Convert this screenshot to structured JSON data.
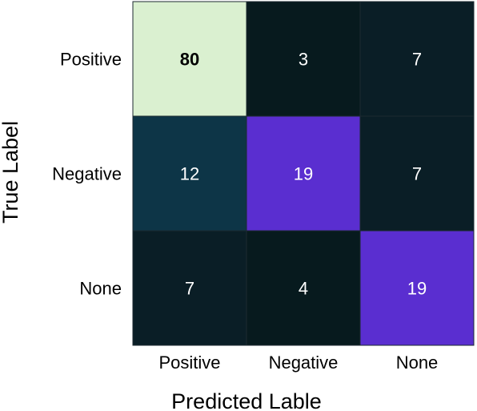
{
  "chart_data": {
    "type": "heatmap",
    "title": "",
    "xlabel": "Predicted Lable",
    "ylabel": "True Label",
    "x_categories": [
      "Positive",
      "Negative",
      "None"
    ],
    "y_categories": [
      "Positive",
      "Negative",
      "None"
    ],
    "values": [
      [
        80,
        3,
        7
      ],
      [
        12,
        19,
        7
      ],
      [
        7,
        4,
        19
      ]
    ],
    "cell_colors": [
      [
        "#daf0d0",
        "#071a1e",
        "#0a1e26"
      ],
      [
        "#0d3547",
        "#5a2ed0",
        "#0a1e26"
      ],
      [
        "#0a1e26",
        "#071a1e",
        "#5a2ed0"
      ]
    ],
    "text_colors": [
      [
        "#000000",
        "#ffffff",
        "#ffffff"
      ],
      [
        "#ffffff",
        "#ffffff",
        "#ffffff"
      ],
      [
        "#ffffff",
        "#ffffff",
        "#ffffff"
      ]
    ],
    "bold_cells": [
      [
        0,
        0
      ]
    ],
    "grid": false,
    "legend": "none"
  }
}
